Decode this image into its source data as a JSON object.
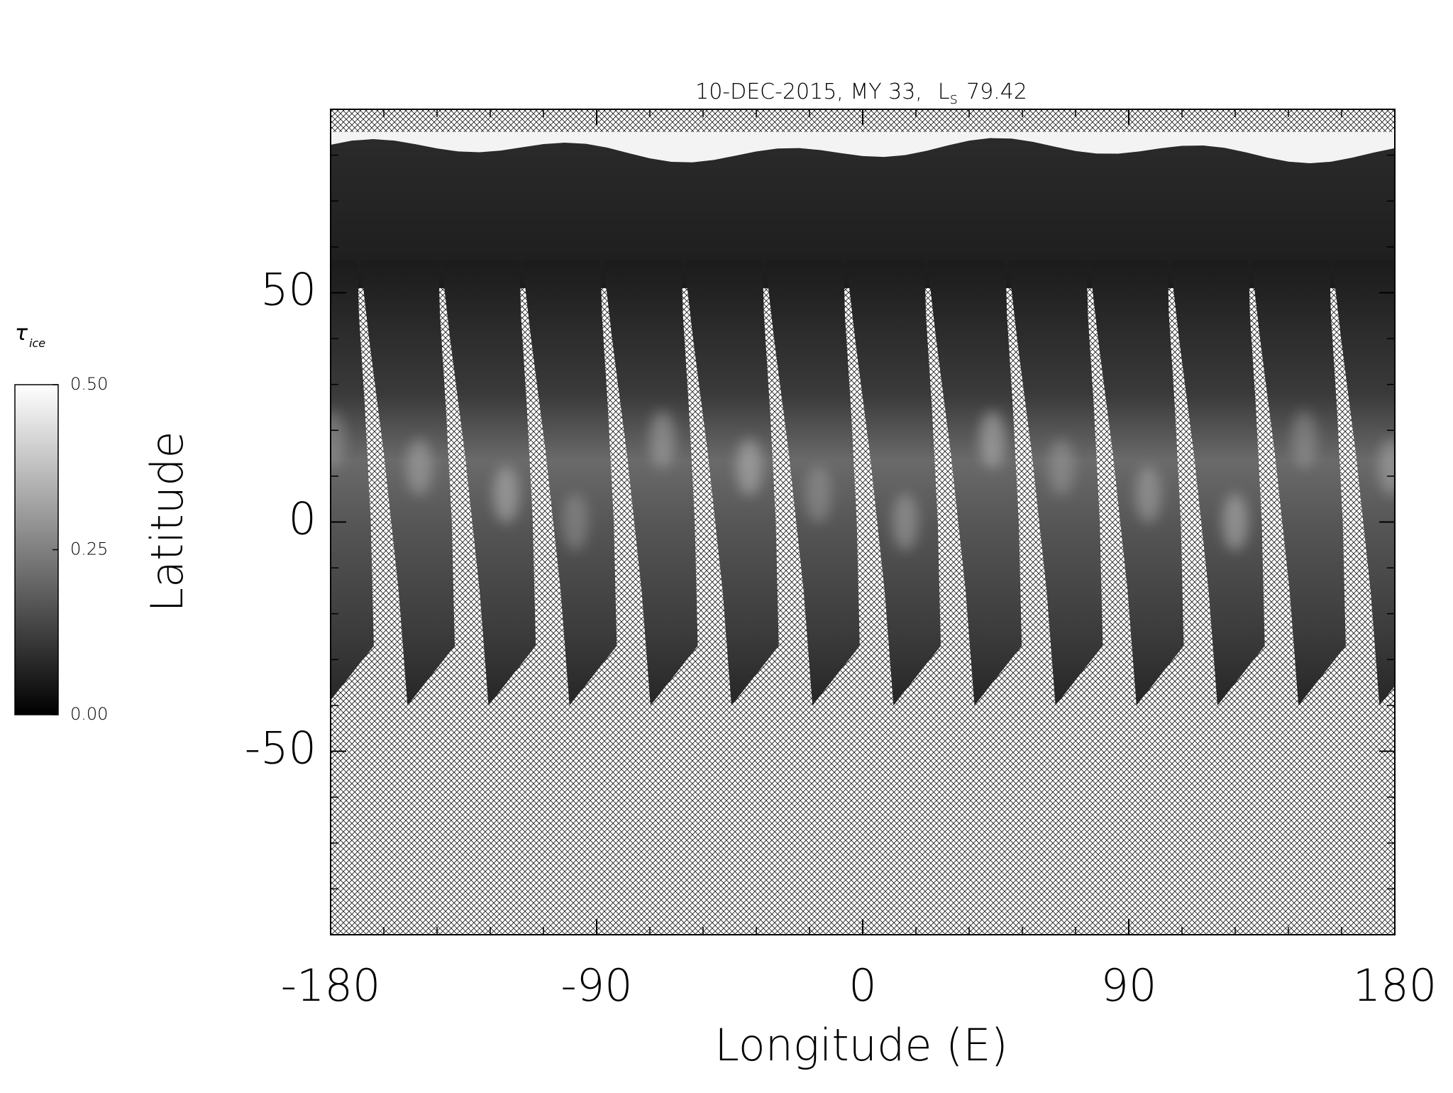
{
  "chart_data": {
    "type": "image",
    "title": "10-DEC-2015, MY 33,",
    "ls_symbol": "L",
    "ls_subscript": "s",
    "ls_value": 79.42,
    "xlabel": "Longitude (E)",
    "ylabel": "Latitude",
    "xlim": [
      -180,
      180
    ],
    "xticks": [
      -180,
      -90,
      0,
      90,
      180
    ],
    "ylim": [
      -90,
      90
    ],
    "yticks": [
      -50,
      0,
      50
    ],
    "colorbar": {
      "label": "τ",
      "label_subscript": "ice",
      "lim": [
        0,
        0.5
      ],
      "ticks": [
        {
          "value": 0,
          "label": "0.00"
        },
        {
          "value": 0.25,
          "label": "0.25"
        },
        {
          "value": 0.5,
          "label": "0.50"
        }
      ],
      "colormap": "gray"
    }
  }
}
